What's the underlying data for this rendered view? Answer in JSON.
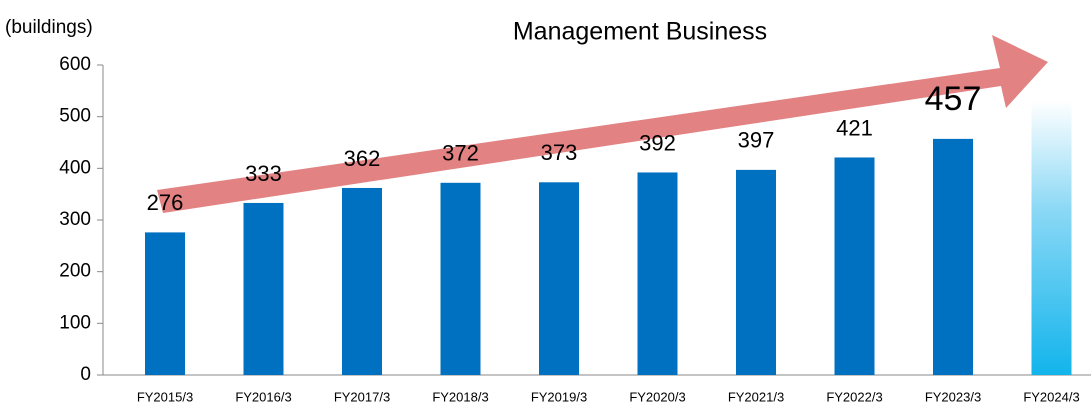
{
  "chart_data": {
    "type": "bar",
    "title": "Management Business",
    "y_label": "(buildings)",
    "categories": [
      "FY2015/3",
      "FY2016/3",
      "FY2017/3",
      "FY2018/3",
      "FY2019/3",
      "FY2020/3",
      "FY2021/3",
      "FY2022/3",
      "FY2023/3",
      "FY2024/3"
    ],
    "values": [
      276,
      333,
      362,
      372,
      373,
      392,
      397,
      421,
      457,
      530
    ],
    "value_labels": [
      "276",
      "333",
      "362",
      "372",
      "373",
      "392",
      "397",
      "421",
      "457",
      null
    ],
    "colors": [
      "#0070c0",
      "#0070c0",
      "#0070c0",
      "#0070c0",
      "#0070c0",
      "#0070c0",
      "#0070c0",
      "#0070c0",
      "#0070c0",
      "#12b4ec"
    ],
    "ylim": [
      0,
      600
    ],
    "yticks": [
      0,
      100,
      200,
      300,
      400,
      500,
      600
    ],
    "grid": false
  }
}
